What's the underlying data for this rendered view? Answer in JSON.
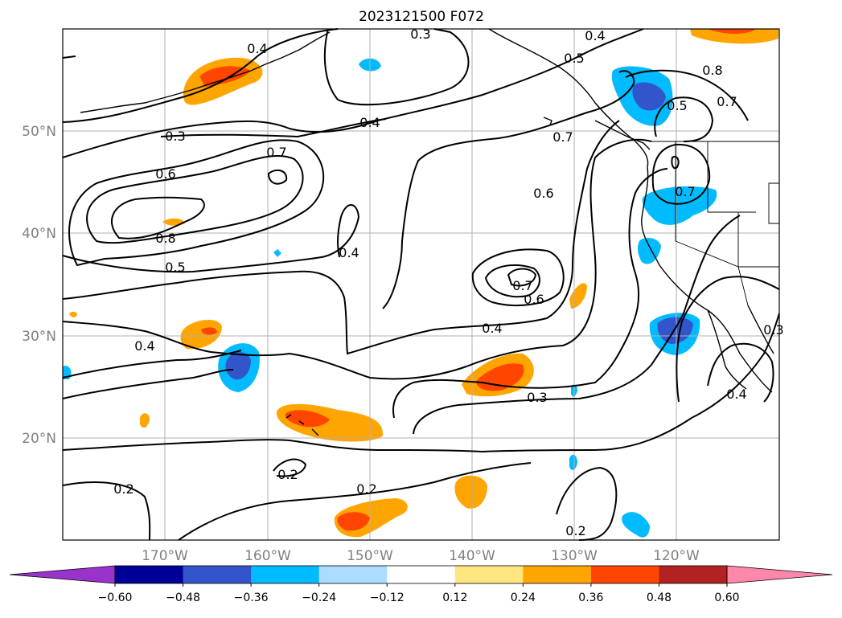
{
  "title": "2023121500 F072",
  "lat_labels": [
    "50°N",
    "40°N",
    "30°N",
    "20°N"
  ],
  "lon_labels": [
    "170°W",
    "160°W",
    "150°W",
    "140°W",
    "130°W",
    "120°W"
  ],
  "contour_labels": [
    "0.3",
    "0.4",
    "0.4",
    "0.5",
    "0.8",
    "0.5",
    "0.7",
    "0.4",
    "0.3",
    "0.7",
    "0.6",
    "0.7",
    "0.6",
    "0.8",
    "0.5",
    "0.4",
    "0.7",
    "0.6",
    "0.7",
    "0.4",
    "0.4",
    "0.3",
    "0.4",
    "0.3",
    "0.2",
    "0.2",
    "0.2",
    "0.2"
  ],
  "colorbar": {
    "ticks": [
      "−0.60",
      "−0.48",
      "−0.36",
      "−0.24",
      "−0.12",
      "0.12",
      "0.24",
      "0.36",
      "0.48",
      "0.60"
    ],
    "colors": [
      "#9933cc",
      "#000099",
      "#3355cc",
      "#00bbff",
      "#aaddff",
      "#ffffff",
      "#ffe680",
      "#ffa500",
      "#ff4500",
      "#b22222",
      "#ff88aa"
    ]
  },
  "colors": {
    "gridline": "#b0b0b0",
    "contour": "#000000",
    "label_gray": "#808080"
  }
}
